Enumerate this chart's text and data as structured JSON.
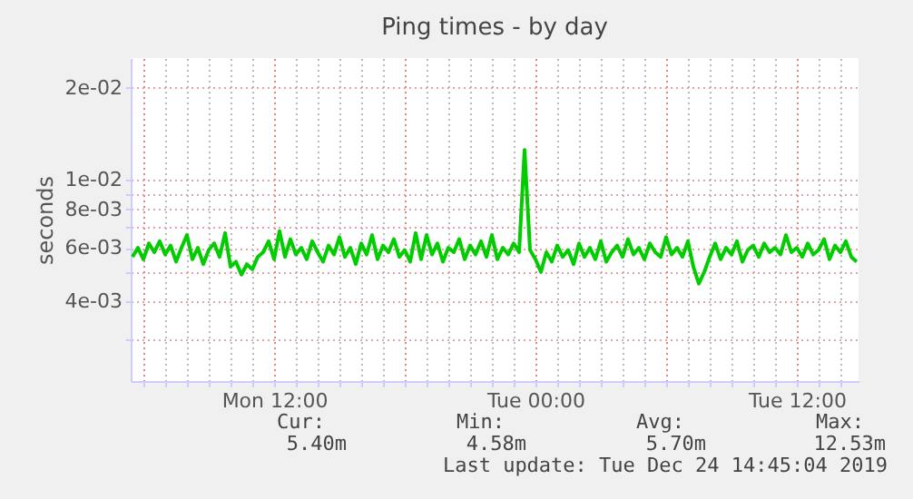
{
  "chart_data": {
    "type": "line",
    "title": "Ping times - by day",
    "ylabel": "seconds",
    "x": [
      "2019-12-23T05:30",
      "2019-12-23T05:45",
      "2019-12-23T06:00",
      "2019-12-23T06:15",
      "2019-12-23T06:30",
      "2019-12-23T06:45",
      "2019-12-23T07:00",
      "2019-12-23T07:15",
      "2019-12-23T07:30",
      "2019-12-23T07:45",
      "2019-12-23T08:00",
      "2019-12-23T08:15",
      "2019-12-23T08:30",
      "2019-12-23T08:45",
      "2019-12-23T09:00",
      "2019-12-23T09:15",
      "2019-12-23T09:30",
      "2019-12-23T09:45",
      "2019-12-23T10:00",
      "2019-12-23T10:15",
      "2019-12-23T10:30",
      "2019-12-23T10:45",
      "2019-12-23T11:00",
      "2019-12-23T11:15",
      "2019-12-23T11:30",
      "2019-12-23T11:45",
      "2019-12-23T12:00",
      "2019-12-23T12:15",
      "2019-12-23T12:30",
      "2019-12-23T12:45",
      "2019-12-23T13:00",
      "2019-12-23T13:15",
      "2019-12-23T13:30",
      "2019-12-23T13:45",
      "2019-12-23T14:00",
      "2019-12-23T14:15",
      "2019-12-23T14:30",
      "2019-12-23T14:45",
      "2019-12-23T15:00",
      "2019-12-23T15:15",
      "2019-12-23T15:30",
      "2019-12-23T15:45",
      "2019-12-23T16:00",
      "2019-12-23T16:15",
      "2019-12-23T16:30",
      "2019-12-23T16:45",
      "2019-12-23T17:00",
      "2019-12-23T17:15",
      "2019-12-23T17:30",
      "2019-12-23T17:45",
      "2019-12-23T18:00",
      "2019-12-23T18:15",
      "2019-12-23T18:30",
      "2019-12-23T18:45",
      "2019-12-23T19:00",
      "2019-12-23T19:15",
      "2019-12-23T19:30",
      "2019-12-23T19:45",
      "2019-12-23T20:00",
      "2019-12-23T20:15",
      "2019-12-23T20:30",
      "2019-12-23T20:45",
      "2019-12-23T21:00",
      "2019-12-23T21:15",
      "2019-12-23T21:30",
      "2019-12-23T21:45",
      "2019-12-23T22:00",
      "2019-12-23T22:15",
      "2019-12-23T22:30",
      "2019-12-23T22:45",
      "2019-12-23T23:00",
      "2019-12-23T23:15",
      "2019-12-23T23:30",
      "2019-12-23T23:45",
      "2019-12-24T00:00",
      "2019-12-24T00:15",
      "2019-12-24T00:30",
      "2019-12-24T00:45",
      "2019-12-24T01:00",
      "2019-12-24T01:15",
      "2019-12-24T01:30",
      "2019-12-24T01:45",
      "2019-12-24T02:00",
      "2019-12-24T02:15",
      "2019-12-24T02:30",
      "2019-12-24T02:45",
      "2019-12-24T03:00",
      "2019-12-24T03:15",
      "2019-12-24T03:30",
      "2019-12-24T03:45",
      "2019-12-24T04:00",
      "2019-12-24T04:15",
      "2019-12-24T04:30",
      "2019-12-24T04:45",
      "2019-12-24T05:00",
      "2019-12-24T05:15",
      "2019-12-24T05:30",
      "2019-12-24T05:45",
      "2019-12-24T06:00",
      "2019-12-24T06:15",
      "2019-12-24T06:30",
      "2019-12-24T06:45",
      "2019-12-24T07:00",
      "2019-12-24T07:15",
      "2019-12-24T07:30",
      "2019-12-24T07:45",
      "2019-12-24T08:00",
      "2019-12-24T08:15",
      "2019-12-24T08:30",
      "2019-12-24T08:45",
      "2019-12-24T09:00",
      "2019-12-24T09:15",
      "2019-12-24T09:30",
      "2019-12-24T09:45",
      "2019-12-24T10:00",
      "2019-12-24T10:15",
      "2019-12-24T10:30",
      "2019-12-24T10:45",
      "2019-12-24T11:00",
      "2019-12-24T11:15",
      "2019-12-24T11:30",
      "2019-12-24T11:45",
      "2019-12-24T12:00",
      "2019-12-24T12:15",
      "2019-12-24T12:30",
      "2019-12-24T12:45",
      "2019-12-24T13:00",
      "2019-12-24T13:15",
      "2019-12-24T13:30",
      "2019-12-24T13:45",
      "2019-12-24T14:00",
      "2019-12-24T14:15",
      "2019-12-24T14:30",
      "2019-12-24T14:45"
    ],
    "series": [
      {
        "color": "#00cc00",
        "values": [
          0.0056,
          0.006,
          0.0055,
          0.0062,
          0.0058,
          0.0063,
          0.0057,
          0.0061,
          0.0054,
          0.006,
          0.0066,
          0.0055,
          0.006,
          0.0053,
          0.0059,
          0.0062,
          0.0056,
          0.0067,
          0.0052,
          0.0054,
          0.0049,
          0.0053,
          0.0051,
          0.0056,
          0.0058,
          0.0063,
          0.0055,
          0.0068,
          0.0056,
          0.0064,
          0.0057,
          0.006,
          0.0055,
          0.0063,
          0.0058,
          0.0054,
          0.0061,
          0.0057,
          0.0065,
          0.0056,
          0.006,
          0.0053,
          0.0062,
          0.0057,
          0.0066,
          0.0055,
          0.0061,
          0.0058,
          0.0064,
          0.0056,
          0.0059,
          0.0054,
          0.0067,
          0.0055,
          0.0066,
          0.0057,
          0.0062,
          0.0054,
          0.006,
          0.0058,
          0.0064,
          0.0055,
          0.0061,
          0.0057,
          0.0063,
          0.0056,
          0.0066,
          0.0055,
          0.006,
          0.0057,
          0.0062,
          0.0058,
          0.01253,
          0.0059,
          0.0055,
          0.005,
          0.0058,
          0.0054,
          0.0061,
          0.0056,
          0.0059,
          0.0053,
          0.0062,
          0.0056,
          0.006,
          0.0055,
          0.0063,
          0.0054,
          0.0058,
          0.0061,
          0.0056,
          0.0064,
          0.0057,
          0.006,
          0.0055,
          0.0062,
          0.0058,
          0.0056,
          0.0065,
          0.0057,
          0.006,
          0.0056,
          0.0063,
          0.0052,
          0.00458,
          0.005,
          0.0056,
          0.0062,
          0.0055,
          0.006,
          0.0057,
          0.0063,
          0.0054,
          0.0059,
          0.0061,
          0.0056,
          0.0062,
          0.0058,
          0.006,
          0.0057,
          0.0066,
          0.0058,
          0.006,
          0.0056,
          0.0062,
          0.0057,
          0.0059,
          0.0064,
          0.0055,
          0.0061,
          0.0058,
          0.0063,
          0.0056,
          0.0054
        ]
      }
    ],
    "xlim": [
      "2019-12-23T05:25",
      "2019-12-24T14:50"
    ],
    "xticks": [
      {
        "value": "2019-12-23T06:00",
        "label": null
      },
      {
        "value": "2019-12-23T07:00",
        "label": null
      },
      {
        "value": "2019-12-23T08:00",
        "label": null
      },
      {
        "value": "2019-12-23T09:00",
        "label": null
      },
      {
        "value": "2019-12-23T10:00",
        "label": null
      },
      {
        "value": "2019-12-23T11:00",
        "label": null
      },
      {
        "value": "2019-12-23T12:00",
        "label": "Mon 12:00"
      },
      {
        "value": "2019-12-23T13:00",
        "label": null
      },
      {
        "value": "2019-12-23T14:00",
        "label": null
      },
      {
        "value": "2019-12-23T15:00",
        "label": null
      },
      {
        "value": "2019-12-23T16:00",
        "label": null
      },
      {
        "value": "2019-12-23T17:00",
        "label": null
      },
      {
        "value": "2019-12-23T18:00",
        "label": null
      },
      {
        "value": "2019-12-23T19:00",
        "label": null
      },
      {
        "value": "2019-12-23T20:00",
        "label": null
      },
      {
        "value": "2019-12-23T21:00",
        "label": null
      },
      {
        "value": "2019-12-23T22:00",
        "label": null
      },
      {
        "value": "2019-12-23T23:00",
        "label": null
      },
      {
        "value": "2019-12-24T00:00",
        "label": "Tue 00:00"
      },
      {
        "value": "2019-12-24T01:00",
        "label": null
      },
      {
        "value": "2019-12-24T02:00",
        "label": null
      },
      {
        "value": "2019-12-24T03:00",
        "label": null
      },
      {
        "value": "2019-12-24T04:00",
        "label": null
      },
      {
        "value": "2019-12-24T05:00",
        "label": null
      },
      {
        "value": "2019-12-24T06:00",
        "label": null
      },
      {
        "value": "2019-12-24T07:00",
        "label": null
      },
      {
        "value": "2019-12-24T08:00",
        "label": null
      },
      {
        "value": "2019-12-24T09:00",
        "label": null
      },
      {
        "value": "2019-12-24T10:00",
        "label": null
      },
      {
        "value": "2019-12-24T11:00",
        "label": null
      },
      {
        "value": "2019-12-24T12:00",
        "label": "Tue 12:00"
      },
      {
        "value": "2019-12-24T13:00",
        "label": null
      },
      {
        "value": "2019-12-24T14:00",
        "label": null
      }
    ],
    "ylim": [
      0.0022,
      0.025
    ],
    "log": true,
    "yticks": [
      {
        "value": 0.003,
        "label": null
      },
      {
        "value": 0.004,
        "label": "4e-03"
      },
      {
        "value": 0.005,
        "label": null
      },
      {
        "value": 0.006,
        "label": "6e-03"
      },
      {
        "value": 0.007,
        "label": null
      },
      {
        "value": 0.008,
        "label": "8e-03"
      },
      {
        "value": 0.009,
        "label": null
      },
      {
        "value": 0.01,
        "label": "1e-02"
      },
      {
        "value": 0.02,
        "label": "2e-02"
      }
    ],
    "grid": true,
    "marker": "none",
    "line_style": "solid",
    "annotations": [
      "Cur:",
      "Min:",
      "Avg:",
      "Max:",
      "5.40m",
      "4.58m",
      "5.70m",
      "12.53m",
      "Last update: Tue Dec 24 14:45:04 2019"
    ]
  }
}
